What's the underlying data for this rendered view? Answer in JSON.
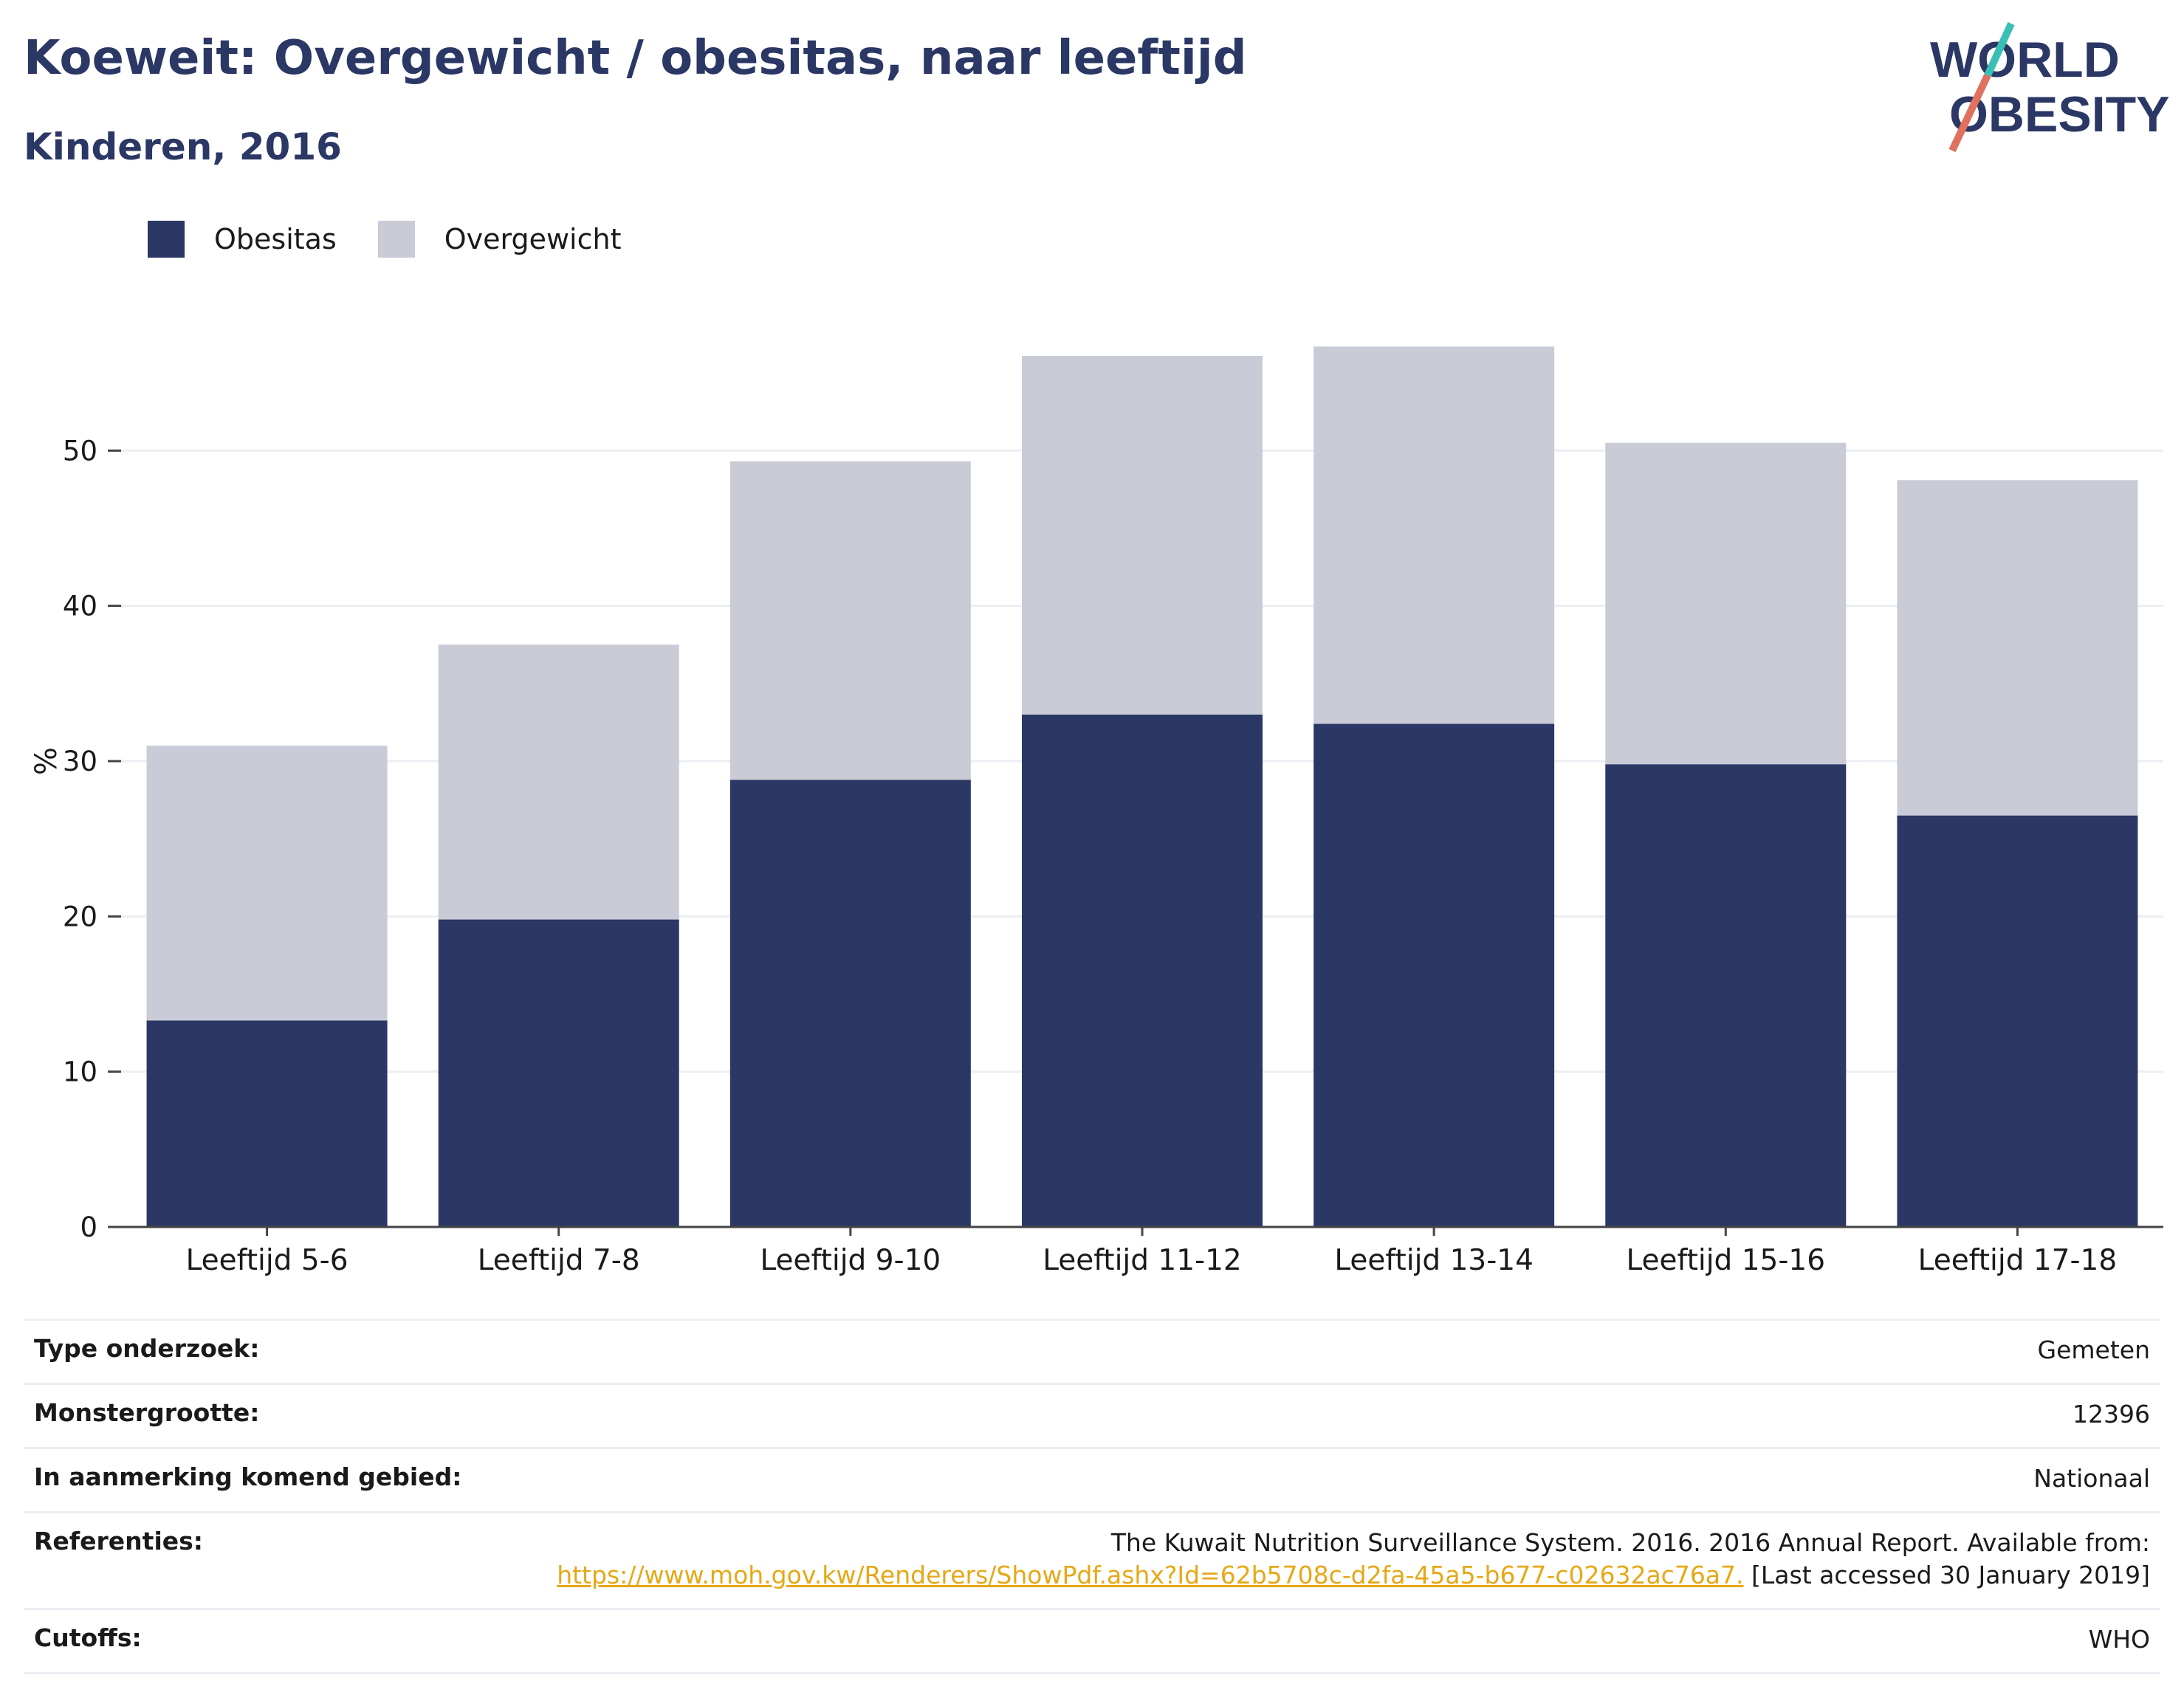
{
  "header": {
    "title": "Koeweit: Overgewicht / obesitas, naar leeftijd",
    "subtitle": "Kinderen, 2016"
  },
  "logo": {
    "line1": "WORLD",
    "line2": "OBESITY"
  },
  "legend": [
    {
      "label": "Obesitas",
      "color": "#2b3764"
    },
    {
      "label": "Overgewicht",
      "color": "#c9ccd7"
    }
  ],
  "chart_data": {
    "type": "bar",
    "stacked": true,
    "categories": [
      "Leeftijd 5-6",
      "Leeftijd 7-8",
      "Leeftijd 9-10",
      "Leeftijd 11-12",
      "Leeftijd 13-14",
      "Leeftijd 15-16",
      "Leeftijd 17-18"
    ],
    "series": [
      {
        "name": "Obesitas",
        "color": "#2b3764",
        "values": [
          13.3,
          19.8,
          28.8,
          33.0,
          32.4,
          29.8,
          26.5
        ]
      },
      {
        "name": "Overgewicht",
        "color": "#c9ccd7",
        "values": [
          17.7,
          17.7,
          20.5,
          23.1,
          24.3,
          20.7,
          21.6
        ]
      }
    ],
    "ylabel": "%",
    "xlabel": "",
    "ylim": [
      0,
      60
    ],
    "yticks": [
      0,
      10,
      20,
      30,
      40,
      50
    ],
    "grid": true
  },
  "meta": [
    {
      "label": "Type onderzoek:",
      "value": "Gemeten"
    },
    {
      "label": "Monstergrootte:",
      "value": "12396"
    },
    {
      "label": "In aanmerking komend gebied:",
      "value": "Nationaal"
    },
    {
      "label": "Referenties:",
      "value": "The Kuwait Nutrition Surveillance System. 2016. 2016 Annual Report. Available from:",
      "link": "https://www.moh.gov.kw/Renderers/ShowPdf.ashx?Id=62b5708c-d2fa-45a5-b677-c02632ac76a7.",
      "suffix": " [Last accessed 30 January 2019]"
    },
    {
      "label": "Cutoffs:",
      "value": "WHO"
    }
  ]
}
